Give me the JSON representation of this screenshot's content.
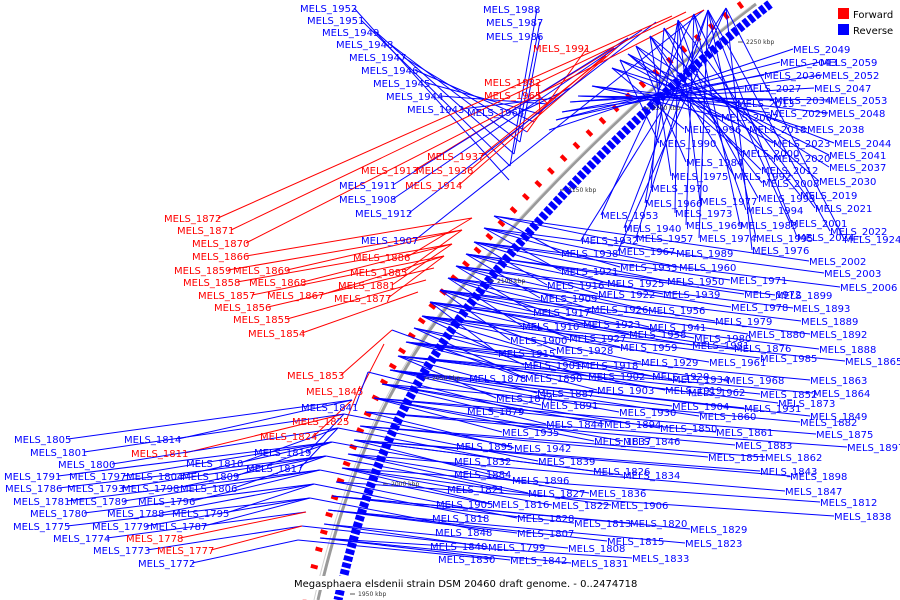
{
  "legend": {
    "items": [
      {
        "name": "Forward",
        "color": "#ff0000"
      },
      {
        "name": "Reverse",
        "color": "#0000ff"
      }
    ]
  },
  "caption": "Megasphaera elsdenii strain DSM 20460 draft genome. - 0..2474718",
  "colors": {
    "forward": "#ff0000",
    "reverse": "#0000ff",
    "backbone": "#808080"
  },
  "ticks": [
    "2250 kbp",
    "2200 kbp",
    "2150 kbp",
    "2100 kbp",
    "2050 kbp",
    "2000 kbp",
    "1950 kbp"
  ],
  "labels": [
    {
      "t": "MELS_1952",
      "c": "b"
    },
    {
      "t": "MELS_1951",
      "c": "b"
    },
    {
      "t": "MELS_1949",
      "c": "b"
    },
    {
      "t": "MELS_1948",
      "c": "b"
    },
    {
      "t": "MELS_1947",
      "c": "b"
    },
    {
      "t": "MELS_1946",
      "c": "b"
    },
    {
      "t": "MELS_1945",
      "c": "b"
    },
    {
      "t": "MELS_1944",
      "c": "b"
    },
    {
      "t": "MELS_1943",
      "c": "b"
    },
    {
      "t": "MELS_1964",
      "c": "b"
    },
    {
      "t": "MELS_1988",
      "c": "b"
    },
    {
      "t": "MELS_1987",
      "c": "b"
    },
    {
      "t": "MELS_1986",
      "c": "b"
    },
    {
      "t": "MELS_1991",
      "c": "r"
    },
    {
      "t": "MELS_1982",
      "c": "r"
    },
    {
      "t": "MELS_1965",
      "c": "r"
    },
    {
      "t": "MELS_1937",
      "c": "r"
    },
    {
      "t": "MELS_1913",
      "c": "r"
    },
    {
      "t": "MELS_1936",
      "c": "r"
    },
    {
      "t": "MELS_1914",
      "c": "r"
    },
    {
      "t": "MELS_1911",
      "c": "b"
    },
    {
      "t": "MELS_1908",
      "c": "b"
    },
    {
      "t": "MELS_1912",
      "c": "b"
    },
    {
      "t": "MELS_1907",
      "c": "b"
    },
    {
      "t": "MELS_1872",
      "c": "r"
    },
    {
      "t": "MELS_1871",
      "c": "r"
    },
    {
      "t": "MELS_1870",
      "c": "r"
    },
    {
      "t": "MELS_1866",
      "c": "r"
    },
    {
      "t": "MELS_1859",
      "c": "r"
    },
    {
      "t": "MELS_1869",
      "c": "r"
    },
    {
      "t": "MELS_1858",
      "c": "r"
    },
    {
      "t": "MELS_1868",
      "c": "r"
    },
    {
      "t": "MELS_1857",
      "c": "r"
    },
    {
      "t": "MELS_1867",
      "c": "r"
    },
    {
      "t": "MELS_1856",
      "c": "r"
    },
    {
      "t": "MELS_1855",
      "c": "r"
    },
    {
      "t": "MELS_1854",
      "c": "r"
    },
    {
      "t": "MELS_1886",
      "c": "r"
    },
    {
      "t": "MELS_1885",
      "c": "r"
    },
    {
      "t": "MELS_1881",
      "c": "r"
    },
    {
      "t": "MELS_1877",
      "c": "r"
    },
    {
      "t": "MELS_1853",
      "c": "r"
    },
    {
      "t": "MELS_1845",
      "c": "r"
    },
    {
      "t": "MELS_1841",
      "c": "b"
    },
    {
      "t": "MELS_1825",
      "c": "r"
    },
    {
      "t": "MELS_1824",
      "c": "r"
    },
    {
      "t": "MELS_1819",
      "c": "b"
    },
    {
      "t": "MELS_1817",
      "c": "b"
    },
    {
      "t": "MELS_1814",
      "c": "b"
    },
    {
      "t": "MELS_1811",
      "c": "r"
    },
    {
      "t": "MELS_1810",
      "c": "b"
    },
    {
      "t": "MELS_1805",
      "c": "b"
    },
    {
      "t": "MELS_1801",
      "c": "b"
    },
    {
      "t": "MELS_1800",
      "c": "b"
    },
    {
      "t": "MELS_1791",
      "c": "b"
    },
    {
      "t": "MELS_1797",
      "c": "b"
    },
    {
      "t": "MELS_1804",
      "c": "b"
    },
    {
      "t": "MELS_1809",
      "c": "b"
    },
    {
      "t": "MELS_1786",
      "c": "b"
    },
    {
      "t": "MELS_1793",
      "c": "b"
    },
    {
      "t": "MELS_1798",
      "c": "b"
    },
    {
      "t": "MELS_1806",
      "c": "b"
    },
    {
      "t": "MELS_1781",
      "c": "b"
    },
    {
      "t": "MELS_1789",
      "c": "b"
    },
    {
      "t": "MELS_1796",
      "c": "b"
    },
    {
      "t": "MELS_1780",
      "c": "b"
    },
    {
      "t": "MELS_1788",
      "c": "b"
    },
    {
      "t": "MELS_1795",
      "c": "b"
    },
    {
      "t": "MELS_1775",
      "c": "b"
    },
    {
      "t": "MELS_1779",
      "c": "b"
    },
    {
      "t": "MELS_1787",
      "c": "b"
    },
    {
      "t": "MELS_1774",
      "c": "b"
    },
    {
      "t": "MELS_1778",
      "c": "r"
    },
    {
      "t": "MELS_1773",
      "c": "b"
    },
    {
      "t": "MELS_1777",
      "c": "r"
    },
    {
      "t": "MELS_1772",
      "c": "b"
    },
    {
      "t": "MELS_2049",
      "c": "b"
    },
    {
      "t": "MELS_2043",
      "c": "b"
    },
    {
      "t": "MELS_2059",
      "c": "b"
    },
    {
      "t": "MELS_2036",
      "c": "b"
    },
    {
      "t": "MELS_2052",
      "c": "b"
    },
    {
      "t": "MELS_2027",
      "c": "b"
    },
    {
      "t": "MELS_2047",
      "c": "b"
    },
    {
      "t": "MELS_2013",
      "c": "b"
    },
    {
      "t": "MELS_2034",
      "c": "b"
    },
    {
      "t": "MELS_2053",
      "c": "b"
    },
    {
      "t": "MELS_2007",
      "c": "b"
    },
    {
      "t": "MELS_2029",
      "c": "b"
    },
    {
      "t": "MELS_2048",
      "c": "b"
    },
    {
      "t": "MELS_1996",
      "c": "b"
    },
    {
      "t": "MELS_2018",
      "c": "b"
    },
    {
      "t": "MELS_2038",
      "c": "b"
    },
    {
      "t": "MELS_1990",
      "c": "b"
    },
    {
      "t": "MELS_2023",
      "c": "b"
    },
    {
      "t": "MELS_2044",
      "c": "b"
    },
    {
      "t": "MELS_2000",
      "c": "b"
    },
    {
      "t": "MELS_2041",
      "c": "b"
    },
    {
      "t": "MELS_1984",
      "c": "b"
    },
    {
      "t": "MELS_2020",
      "c": "b"
    },
    {
      "t": "MELS_2037",
      "c": "b"
    },
    {
      "t": "MELS_1975",
      "c": "b"
    },
    {
      "t": "MELS_1992",
      "c": "b"
    },
    {
      "t": "MELS_2012",
      "c": "b"
    },
    {
      "t": "MELS_2030",
      "c": "b"
    },
    {
      "t": "MELS_1970",
      "c": "b"
    },
    {
      "t": "MELS_2008",
      "c": "b"
    },
    {
      "t": "MELS_2019",
      "c": "b"
    },
    {
      "t": "MELS_1993",
      "c": "b"
    },
    {
      "t": "MELS_1966",
      "c": "b"
    },
    {
      "t": "MELS_1977",
      "c": "b"
    },
    {
      "t": "MELS_2021",
      "c": "b"
    },
    {
      "t": "MELS_1953",
      "c": "b"
    },
    {
      "t": "MELS_1973",
      "c": "b"
    },
    {
      "t": "MELS_1994",
      "c": "b"
    },
    {
      "t": "MELS_1940",
      "c": "b"
    },
    {
      "t": "MELS_1969",
      "c": "b"
    },
    {
      "t": "MELS_1983",
      "c": "b"
    },
    {
      "t": "MELS_2001",
      "c": "b"
    },
    {
      "t": "MELS_2022",
      "c": "b"
    },
    {
      "t": "MELS_1932",
      "c": "b"
    },
    {
      "t": "MELS_1957",
      "c": "b"
    },
    {
      "t": "MELS_1974",
      "c": "b"
    },
    {
      "t": "MELS_1995",
      "c": "b"
    },
    {
      "t": "MELS_2024",
      "c": "b"
    },
    {
      "t": "MELS_1924",
      "c": "b"
    },
    {
      "t": "MELS_1938",
      "c": "b"
    },
    {
      "t": "MELS_1967",
      "c": "b"
    },
    {
      "t": "MELS_1989",
      "c": "b"
    },
    {
      "t": "MELS_1976",
      "c": "b"
    },
    {
      "t": "MELS_2002",
      "c": "b"
    },
    {
      "t": "MELS_1921",
      "c": "b"
    },
    {
      "t": "MELS_1933",
      "c": "b"
    },
    {
      "t": "MELS_1960",
      "c": "b"
    },
    {
      "t": "MELS_2003",
      "c": "b"
    },
    {
      "t": "MELS_1916",
      "c": "b"
    },
    {
      "t": "MELS_1925",
      "c": "b"
    },
    {
      "t": "MELS_1950",
      "c": "b"
    },
    {
      "t": "MELS_1971",
      "c": "b"
    },
    {
      "t": "MELS_2006",
      "c": "b"
    },
    {
      "t": "MELS_1909",
      "c": "b"
    },
    {
      "t": "MELS_1922",
      "c": "b"
    },
    {
      "t": "MELS_1939",
      "c": "b"
    },
    {
      "t": "MELS_1972",
      "c": "b"
    },
    {
      "t": "MELS_1899",
      "c": "b"
    },
    {
      "t": "MELS_1917",
      "c": "b"
    },
    {
      "t": "MELS_1926",
      "c": "b"
    },
    {
      "t": "MELS_1956",
      "c": "b"
    },
    {
      "t": "MELS_1978",
      "c": "b"
    },
    {
      "t": "MELS_1893",
      "c": "b"
    },
    {
      "t": "MELS_1910",
      "c": "b"
    },
    {
      "t": "MELS_1923",
      "c": "b"
    },
    {
      "t": "MELS_1941",
      "c": "b"
    },
    {
      "t": "MELS_1979",
      "c": "b"
    },
    {
      "t": "MELS_1889",
      "c": "b"
    },
    {
      "t": "MELS_1900",
      "c": "b"
    },
    {
      "t": "MELS_1927",
      "c": "b"
    },
    {
      "t": "MELS_1958",
      "c": "b"
    },
    {
      "t": "MELS_1980",
      "c": "b"
    },
    {
      "t": "MELS_1880",
      "c": "b"
    },
    {
      "t": "MELS_1892",
      "c": "b"
    },
    {
      "t": "MELS_1915",
      "c": "b"
    },
    {
      "t": "MELS_1928",
      "c": "b"
    },
    {
      "t": "MELS_1959",
      "c": "b"
    },
    {
      "t": "MELS_1981",
      "c": "b"
    },
    {
      "t": "MELS_1876",
      "c": "b"
    },
    {
      "t": "MELS_1888",
      "c": "b"
    },
    {
      "t": "MELS_1901",
      "c": "b"
    },
    {
      "t": "MELS_1918",
      "c": "b"
    },
    {
      "t": "MELS_1929",
      "c": "b"
    },
    {
      "t": "MELS_1961",
      "c": "b"
    },
    {
      "t": "MELS_1985",
      "c": "b"
    },
    {
      "t": "MELS_1865",
      "c": "b"
    },
    {
      "t": "MELS_1878",
      "c": "b"
    },
    {
      "t": "MELS_1890",
      "c": "b"
    },
    {
      "t": "MELS_1902",
      "c": "b"
    },
    {
      "t": "MELS_1920",
      "c": "b"
    },
    {
      "t": "MELS_1934",
      "c": "b"
    },
    {
      "t": "MELS_1968",
      "c": "b"
    },
    {
      "t": "MELS_1863",
      "c": "b"
    },
    {
      "t": "MELS_1874",
      "c": "b"
    },
    {
      "t": "MELS_1887",
      "c": "b"
    },
    {
      "t": "MELS_1903",
      "c": "b"
    },
    {
      "t": "MELS_1919",
      "c": "b"
    },
    {
      "t": "MELS_1962",
      "c": "b"
    },
    {
      "t": "MELS_1852",
      "c": "b"
    },
    {
      "t": "MELS_1864",
      "c": "b"
    },
    {
      "t": "MELS_1879",
      "c": "b"
    },
    {
      "t": "MELS_1891",
      "c": "b"
    },
    {
      "t": "MELS_1930",
      "c": "b"
    },
    {
      "t": "MELS_1904",
      "c": "b"
    },
    {
      "t": "MELS_1931",
      "c": "b"
    },
    {
      "t": "MELS_1873",
      "c": "b"
    },
    {
      "t": "MELS_1849",
      "c": "b"
    },
    {
      "t": "MELS_1860",
      "c": "b"
    },
    {
      "t": "MELS_1882",
      "c": "b"
    },
    {
      "t": "MELS_1894",
      "c": "b"
    },
    {
      "t": "MELS_1935",
      "c": "b"
    },
    {
      "t": "MELS_1844",
      "c": "b"
    },
    {
      "t": "MELS_1850",
      "c": "b"
    },
    {
      "t": "MELS_1861",
      "c": "b"
    },
    {
      "t": "MELS_1875",
      "c": "b"
    },
    {
      "t": "MELS_1895",
      "c": "b"
    },
    {
      "t": "MELS_1942",
      "c": "b"
    },
    {
      "t": "MELS_1837",
      "c": "b"
    },
    {
      "t": "MELS_1846",
      "c": "b"
    },
    {
      "t": "MELS_1883",
      "c": "b"
    },
    {
      "t": "MELS_1897",
      "c": "b"
    },
    {
      "t": "MELS_1832",
      "c": "b"
    },
    {
      "t": "MELS_1839",
      "c": "b"
    },
    {
      "t": "MELS_1851",
      "c": "b"
    },
    {
      "t": "MELS_1862",
      "c": "b"
    },
    {
      "t": "MELS_1884",
      "c": "b"
    },
    {
      "t": "MELS_1896",
      "c": "b"
    },
    {
      "t": "MELS_1826",
      "c": "b"
    },
    {
      "t": "MELS_1834",
      "c": "b"
    },
    {
      "t": "MELS_1843",
      "c": "b"
    },
    {
      "t": "MELS_1898",
      "c": "b"
    },
    {
      "t": "MELS_1821",
      "c": "b"
    },
    {
      "t": "MELS_1827",
      "c": "b"
    },
    {
      "t": "MELS_1836",
      "c": "b"
    },
    {
      "t": "MELS_1847",
      "c": "b"
    },
    {
      "t": "MELS_1905",
      "c": "b"
    },
    {
      "t": "MELS_1816",
      "c": "b"
    },
    {
      "t": "MELS_1822",
      "c": "b"
    },
    {
      "t": "MELS_1906",
      "c": "b"
    },
    {
      "t": "MELS_1812",
      "c": "b"
    },
    {
      "t": "MELS_1818",
      "c": "b"
    },
    {
      "t": "MELS_1828",
      "c": "b"
    },
    {
      "t": "MELS_1838",
      "c": "b"
    },
    {
      "t": "MELS_1848",
      "c": "b"
    },
    {
      "t": "MELS_1807",
      "c": "b"
    },
    {
      "t": "MELS_1813",
      "c": "b"
    },
    {
      "t": "MELS_1820",
      "c": "b"
    },
    {
      "t": "MELS_1829",
      "c": "b"
    },
    {
      "t": "MELS_1840",
      "c": "b"
    },
    {
      "t": "MELS_1799",
      "c": "b"
    },
    {
      "t": "MELS_1808",
      "c": "b"
    },
    {
      "t": "MELS_1815",
      "c": "b"
    },
    {
      "t": "MELS_1823",
      "c": "b"
    },
    {
      "t": "MELS_1830",
      "c": "b"
    },
    {
      "t": "MELS_1842",
      "c": "b"
    },
    {
      "t": "MELS_1831",
      "c": "b"
    },
    {
      "t": "MELS_1833",
      "c": "b"
    }
  ]
}
